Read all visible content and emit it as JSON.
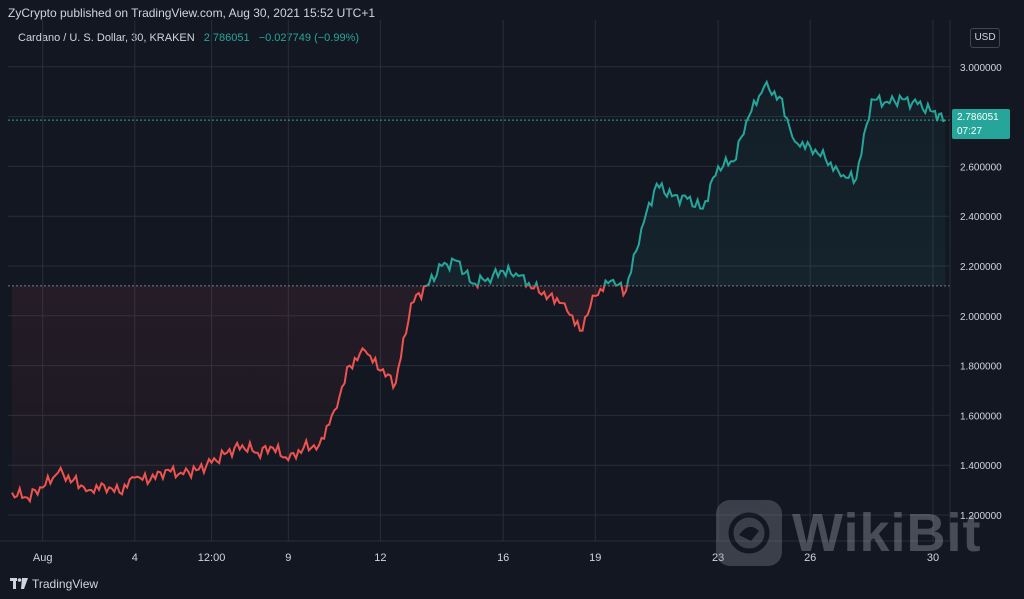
{
  "header": {
    "publish_info": "ZyCrypto published on TradingView.com, Aug 30, 2021 15:52 UTC+1",
    "symbol": "Cardano / U. S. Dollar, 30, KRAKEN",
    "last_price": "2.786051",
    "change": "−0.027749 (−0.99%)"
  },
  "currency": "USD",
  "price_tag": {
    "price": "2.786051",
    "countdown": "07:27"
  },
  "footer": {
    "brand": "TradingView"
  },
  "watermark": {
    "text": "WikiBit"
  },
  "colors": {
    "background": "#131722",
    "up": "#26a69a",
    "down": "#ef5350",
    "grid": "#2a2e39",
    "text": "#d1d4dc"
  },
  "chart_data": {
    "type": "line",
    "title": "",
    "ylim": [
      1.1,
      3.1
    ],
    "xlim": [
      0,
      30.4
    ],
    "y_ticks": [
      "1.200000",
      "1.400000",
      "1.600000",
      "1.800000",
      "2.000000",
      "2.200000",
      "2.400000",
      "2.600000",
      "2.800000",
      "3.000000"
    ],
    "y_tick_values": [
      1.2,
      1.4,
      1.6,
      1.8,
      2.0,
      2.2,
      2.4,
      2.6,
      2.8,
      3.0
    ],
    "x_tick_labels": [
      "Aug",
      "4",
      "12:00",
      "9",
      "12",
      "16",
      "19",
      "23",
      "26",
      "30"
    ],
    "x_tick_values": [
      1,
      4,
      6.5,
      9,
      12,
      16,
      19,
      23,
      26,
      30
    ],
    "baseline": 2.12,
    "last_value": 2.786051,
    "series": [
      {
        "x": [
          0,
          0.5,
          1,
          1.5,
          2,
          2.5,
          3,
          3.5,
          4,
          4.5,
          5,
          5.5,
          6,
          6.5,
          7,
          7.5,
          8,
          8.5,
          9,
          9.5,
          10,
          10.5,
          11,
          11.5,
          12,
          12.5,
          13,
          13.5,
          14,
          14.5,
          15,
          15.5,
          16,
          16.5,
          17,
          17.5,
          18,
          18.5,
          19,
          19.5,
          20,
          20.5,
          21,
          21.5,
          22,
          22.5,
          23,
          23.5,
          24,
          24.5,
          25,
          25.5,
          26,
          26.5,
          27,
          27.5,
          28,
          28.5,
          29,
          29.5,
          30,
          30.4
        ],
        "y": [
          1.29,
          1.27,
          1.31,
          1.37,
          1.34,
          1.3,
          1.32,
          1.29,
          1.35,
          1.34,
          1.38,
          1.37,
          1.38,
          1.41,
          1.45,
          1.48,
          1.45,
          1.47,
          1.42,
          1.47,
          1.48,
          1.62,
          1.8,
          1.86,
          1.78,
          1.73,
          2.05,
          2.12,
          2.2,
          2.22,
          2.13,
          2.15,
          2.18,
          2.16,
          2.11,
          2.08,
          2.05,
          1.94,
          2.08,
          2.14,
          2.1,
          2.35,
          2.53,
          2.48,
          2.47,
          2.43,
          2.6,
          2.62,
          2.8,
          2.92,
          2.88,
          2.7,
          2.68,
          2.63,
          2.56,
          2.55,
          2.87,
          2.86,
          2.87,
          2.85,
          2.82,
          2.786051
        ]
      }
    ]
  }
}
